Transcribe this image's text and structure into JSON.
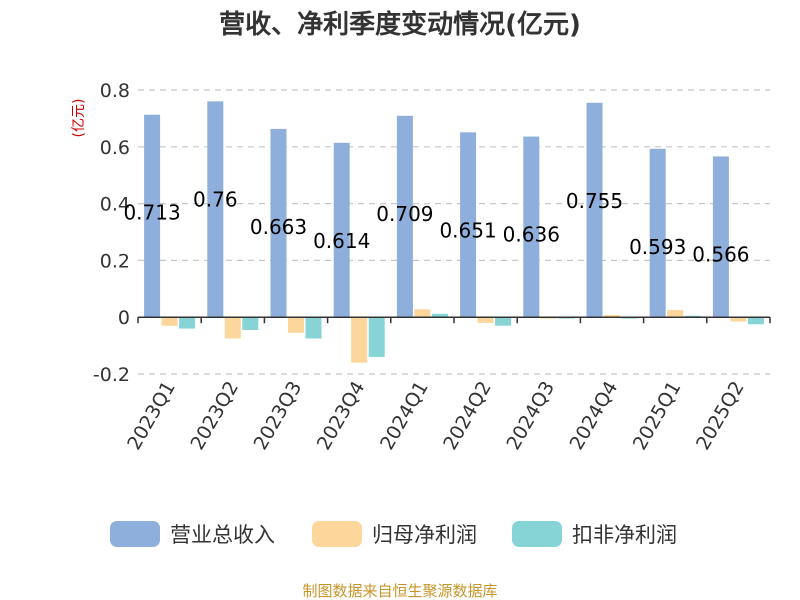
{
  "chart_data": {
    "type": "bar",
    "title": "营收、净利季度变动情况(亿元)",
    "ylabel": "(亿元)",
    "categories": [
      "2023Q1",
      "2023Q2",
      "2023Q3",
      "2023Q4",
      "2024Q1",
      "2024Q2",
      "2024Q3",
      "2024Q4",
      "2025Q1",
      "2025Q2"
    ],
    "ylim": [
      -0.2,
      0.8
    ],
    "yticks": [
      "-0.2",
      "0",
      "0.2",
      "0.4",
      "0.6",
      "0.8"
    ],
    "grid": true,
    "legend_position": "bottom",
    "series": [
      {
        "name": "营业总收入",
        "color": "#8eaedb",
        "values": [
          0.713,
          0.76,
          0.663,
          0.614,
          0.709,
          0.651,
          0.636,
          0.755,
          0.593,
          0.566
        ],
        "labels": [
          "0.713",
          "0.76",
          "0.663",
          "0.614",
          "0.709",
          "0.651",
          "0.636",
          "0.755",
          "0.593",
          "0.566"
        ]
      },
      {
        "name": "归母净利润",
        "color": "#fcd69a",
        "values": [
          -0.03,
          -0.075,
          -0.055,
          -0.16,
          0.028,
          -0.02,
          -0.005,
          0.008,
          0.025,
          -0.015
        ]
      },
      {
        "name": "扣非净利润",
        "color": "#86d4d6",
        "values": [
          -0.04,
          -0.045,
          -0.075,
          -0.14,
          0.012,
          -0.03,
          -0.005,
          -0.005,
          0.005,
          -0.025
        ]
      }
    ],
    "source": "制图数据来自恒生聚源数据库"
  }
}
